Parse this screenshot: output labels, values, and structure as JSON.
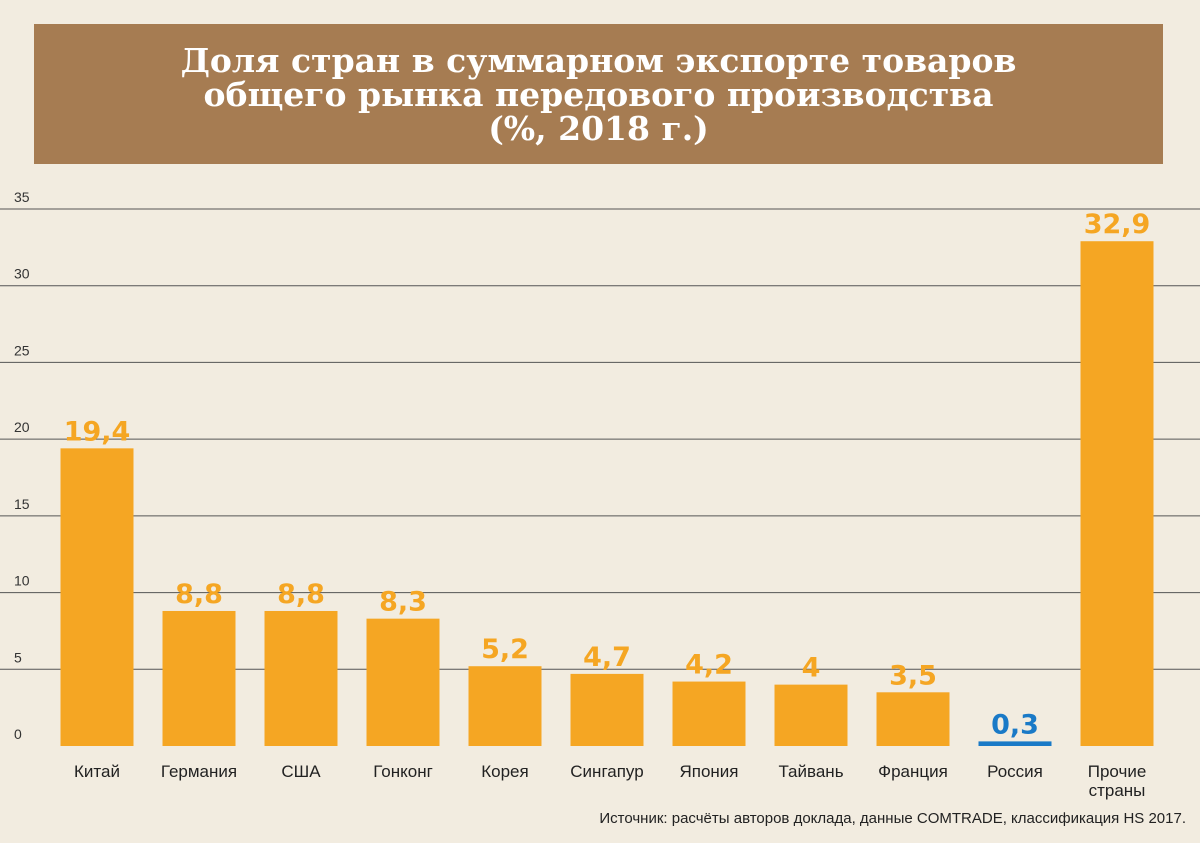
{
  "title": {
    "line1": "Доля стран в суммарном экспорте товаров",
    "line2": "общего рынка передового производства",
    "line3": "(%, 2018 г.)"
  },
  "source": "Источник: расчёты авторов доклада, данные COMTRADE, классификация HS 2017.",
  "colors": {
    "bar": "#f5a623",
    "highlight": "#1a7ac7",
    "title_bg": "#a67c52",
    "background": "#f2ece0",
    "grid": "#555555"
  },
  "chart_data": {
    "type": "bar",
    "categories": [
      "Китай",
      "Германия",
      "США",
      "Гонконг",
      "Корея",
      "Сингапур",
      "Япония",
      "Тайвань",
      "Франция",
      "Россия",
      "Прочие страны"
    ],
    "category_lines": [
      [
        "Китай"
      ],
      [
        "Германия"
      ],
      [
        "США"
      ],
      [
        "Гонконг"
      ],
      [
        "Корея"
      ],
      [
        "Сингапур"
      ],
      [
        "Япония"
      ],
      [
        "Тайвань"
      ],
      [
        "Франция"
      ],
      [
        "Россия"
      ],
      [
        "Прочие",
        "страны"
      ]
    ],
    "values": [
      19.4,
      8.8,
      8.8,
      8.3,
      5.2,
      4.7,
      4.2,
      4,
      3.5,
      0.3,
      32.9
    ],
    "value_labels": [
      "19,4",
      "8,8",
      "8,8",
      "8,3",
      "5,2",
      "4,7",
      "4,2",
      "4",
      "3,5",
      "0,3",
      "32,9"
    ],
    "highlight_category": "Россия",
    "ylim": [
      0,
      35
    ],
    "yticks": [
      0,
      5,
      10,
      15,
      20,
      25,
      30,
      35
    ],
    "grid": true
  }
}
